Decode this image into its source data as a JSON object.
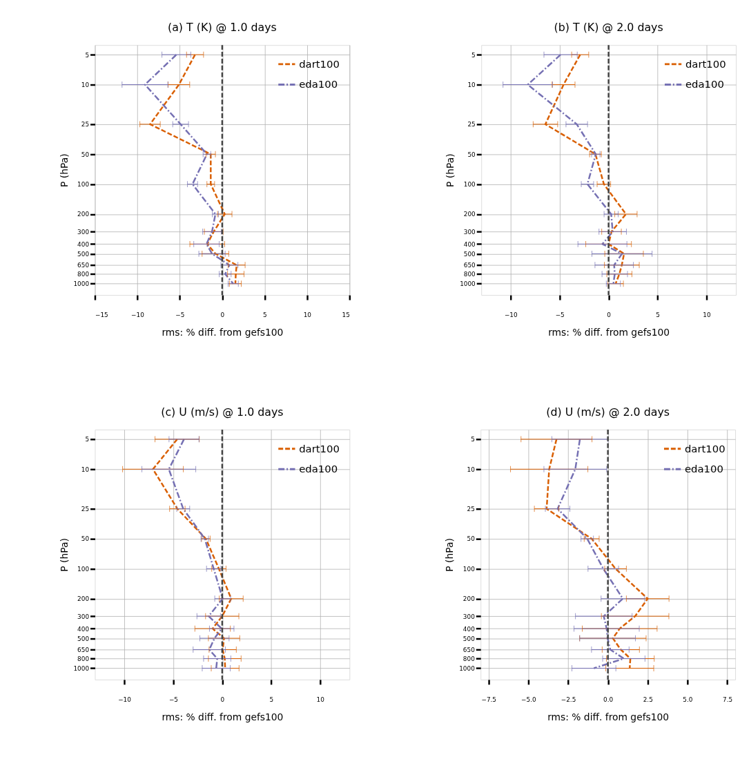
{
  "chart_data": [
    {
      "type": "line",
      "log": "y",
      "title": "(a) T (K) @ 1.0 days",
      "xlabel": "rms: % diff. from gefs100",
      "ylabel": "P (hPa)",
      "xlim": [
        -15,
        15
      ],
      "xticks": [
        -15,
        -10,
        -5,
        0,
        5,
        10,
        15
      ],
      "ylim": [
        1300,
        4
      ],
      "yticks": [
        5,
        10,
        25,
        50,
        100,
        200,
        300,
        400,
        500,
        650,
        800,
        1000
      ],
      "grid": true,
      "legend": "top right",
      "ref_lines": [
        {
          "axis": "x",
          "value": 0,
          "color": "#444444",
          "line_style": "dashed"
        }
      ],
      "series": [
        {
          "name": "dart100",
          "color": "#d95f02",
          "line_style": "dashed",
          "x": [
            -3.2,
            -5.1,
            -8.5,
            -1.35,
            -1.35,
            0.3,
            -1.0,
            -1.76,
            -0.8,
            1.7,
            1.6,
            1.55
          ],
          "values": [
            5,
            10,
            25,
            50,
            100,
            200,
            300,
            400,
            500,
            650,
            800,
            1000
          ],
          "xerrors": [
            1.0,
            1.27,
            1.2,
            0.55,
            0.45,
            0.85,
            1.1,
            2.05,
            1.57,
            1.0,
            0.97,
            0.7
          ]
        },
        {
          "name": "eda100",
          "color": "#7570b3",
          "line_style": "dashdot",
          "x": [
            -5.4,
            -9.1,
            -4.9,
            -1.8,
            -3.5,
            -0.8,
            -1.2,
            -1.85,
            -1.2,
            0.85,
            0.35,
            1.3
          ],
          "values": [
            5,
            10,
            25,
            50,
            100,
            200,
            300,
            400,
            500,
            650,
            800,
            1000
          ],
          "xerrors": [
            1.7,
            2.7,
            0.93,
            0.45,
            0.6,
            0.36,
            1.1,
            1.5,
            1.55,
            1.0,
            0.7,
            0.6
          ]
        }
      ]
    },
    {
      "type": "line",
      "log": "y",
      "title": "(b) T (K) @ 2.0 days",
      "xlabel": "rms: % diff. from gefs100",
      "ylabel": "P (hPa)",
      "xlim": [
        -13,
        13
      ],
      "xticks": [
        -10,
        -5,
        0,
        5,
        10
      ],
      "ylim": [
        1300,
        4
      ],
      "yticks": [
        5,
        10,
        25,
        50,
        100,
        200,
        300,
        400,
        500,
        650,
        800,
        1000
      ],
      "grid": true,
      "legend": "top right",
      "ref_lines": [
        {
          "axis": "x",
          "value": 0,
          "color": "#444444",
          "line_style": "dashed"
        }
      ],
      "series": [
        {
          "name": "dart100",
          "color": "#d95f02",
          "line_style": "dashed",
          "x": [
            -2.9,
            -4.6,
            -6.45,
            -1.34,
            -0.48,
            1.77,
            0.3,
            0.0,
            1.58,
            1.35,
            1.1,
            0.72
          ],
          "values": [
            5,
            10,
            25,
            50,
            100,
            200,
            300,
            400,
            500,
            650,
            800,
            1000
          ],
          "xerrors": [
            0.87,
            1.17,
            1.25,
            0.6,
            0.69,
            1.14,
            1.0,
            2.33,
            1.97,
            1.78,
            1.28,
            0.79
          ]
        },
        {
          "name": "eda100",
          "color": "#7570b3",
          "line_style": "dashdot",
          "x": [
            -4.9,
            -8.25,
            -3.25,
            -1.31,
            -2.16,
            0.26,
            0.42,
            -0.63,
            1.37,
            0.57,
            0.63,
            0.49
          ],
          "values": [
            5,
            10,
            25,
            50,
            100,
            200,
            300,
            400,
            500,
            650,
            800,
            1000
          ],
          "xerrors": [
            1.7,
            2.53,
            1.1,
            0.43,
            0.63,
            0.72,
            1.4,
            2.5,
            3.07,
            1.96,
            1.3,
            0.72
          ]
        }
      ]
    },
    {
      "type": "line",
      "log": "y",
      "title": "(c) U (m/s) @ 1.0 days",
      "xlabel": "rms: % diff. from gefs100",
      "ylabel": "P (hPa)",
      "xlim": [
        -13,
        13
      ],
      "xticks": [
        -10,
        -5,
        0,
        5,
        10
      ],
      "ylim": [
        1300,
        4
      ],
      "yticks": [
        5,
        10,
        25,
        50,
        100,
        200,
        300,
        400,
        500,
        650,
        800,
        1000
      ],
      "grid": true,
      "legend": "top right",
      "ref_lines": [
        {
          "axis": "x",
          "value": 0,
          "color": "#444444",
          "line_style": "dashed"
        }
      ],
      "series": [
        {
          "name": "dart100",
          "color": "#d95f02",
          "line_style": "dashed",
          "x": [
            -4.6,
            -7.07,
            -4.58,
            -1.67,
            -0.34,
            0.92,
            0.0,
            -0.98,
            0.19,
            0.05,
            0.26,
            0.3
          ],
          "values": [
            5,
            10,
            25,
            50,
            100,
            200,
            300,
            400,
            500,
            650,
            800,
            1000
          ],
          "xerrors": [
            2.26,
            3.1,
            0.79,
            0.44,
            0.73,
            1.22,
            1.7,
            1.81,
            1.6,
            1.39,
            1.67,
            1.42
          ]
        },
        {
          "name": "eda100",
          "color": "#7570b3",
          "line_style": "dashdot",
          "x": [
            -3.9,
            -5.45,
            -3.98,
            -1.78,
            -0.87,
            0.05,
            -1.38,
            -0.05,
            -0.79,
            -1.32,
            -0.51,
            -0.61
          ],
          "values": [
            5,
            10,
            25,
            50,
            100,
            200,
            300,
            400,
            500,
            650,
            800,
            1000
          ],
          "xerrors": [
            1.53,
            2.75,
            0.66,
            0.38,
            0.73,
            0.81,
            1.2,
            1.25,
            1.49,
            1.65,
            1.39,
            1.43
          ]
        }
      ]
    },
    {
      "type": "line",
      "log": "y",
      "title": "(d) U (m/s) @ 2.0 days",
      "xlabel": "rms: % diff. from gefs100",
      "ylabel": "P (hPa)",
      "xlim": [
        -8,
        8
      ],
      "xticks": [
        -7.5,
        {
          "value": -5,
          "label": "−5.0"
        },
        -2.5,
        {
          "value": 0,
          "label": "0.0"
        },
        2.5,
        {
          "value": 5,
          "label": "5.0"
        },
        7.5
      ],
      "ylim": [
        1300,
        4
      ],
      "yticks": [
        5,
        10,
        25,
        50,
        100,
        200,
        300,
        400,
        500,
        650,
        800,
        1000
      ],
      "grid": true,
      "legend": "top right",
      "ref_lines": [
        {
          "axis": "x",
          "value": 0,
          "color": "#444444",
          "line_style": "dashed"
        }
      ],
      "series": [
        {
          "name": "dart100",
          "color": "#d95f02",
          "line_style": "dashed",
          "x": [
            -3.23,
            -3.69,
            -3.85,
            -1.02,
            0.48,
            2.5,
            1.71,
            0.74,
            0.31,
            0.81,
            1.41,
            1.37
          ],
          "values": [
            5,
            10,
            25,
            50,
            100,
            200,
            300,
            400,
            500,
            650,
            800,
            1000
          ],
          "xerrors": [
            2.23,
            2.43,
            0.77,
            0.47,
            0.68,
            1.34,
            2.12,
            2.35,
            2.09,
            1.17,
            1.5,
            1.51
          ]
        },
        {
          "name": "eda100",
          "color": "#7570b3",
          "line_style": "dashdot",
          "x": [
            -1.76,
            -2.05,
            -3.16,
            -1.3,
            -0.29,
            0.94,
            -0.26,
            -0.08,
            -0.02,
            0.15,
            1.0,
            -0.88
          ],
          "values": [
            5,
            10,
            25,
            50,
            100,
            200,
            300,
            400,
            500,
            650,
            800,
            1000
          ],
          "xerrors": [
            1.76,
            1.97,
            0.77,
            0.39,
            0.96,
            1.37,
            1.78,
            2.05,
            1.75,
            1.18,
            1.33,
            1.38
          ]
        }
      ]
    }
  ]
}
